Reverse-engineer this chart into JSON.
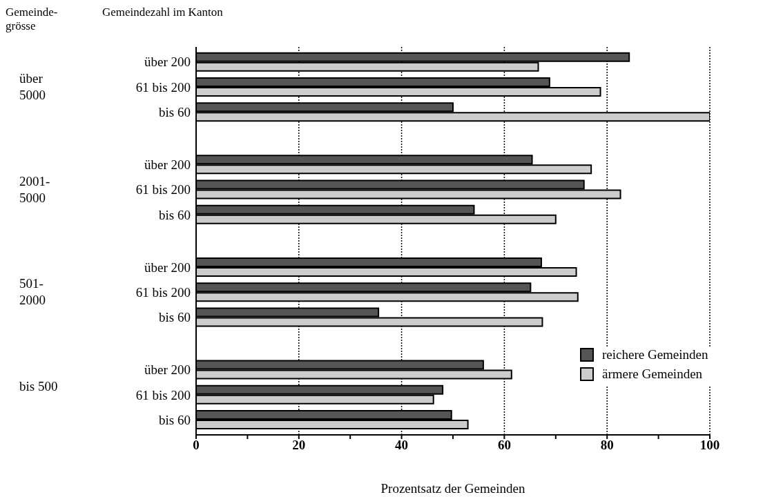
{
  "chart_data": {
    "type": "bar",
    "orientation": "horizontal",
    "ylabel": "Gemeindezahl im Kanton",
    "xlabel": "Prozentsatz der Gemeinden",
    "categories": [
      "über 200",
      "61 bis 200",
      "bis 60",
      "über 200",
      "61 bis 200",
      "bis 60",
      "über 200",
      "61 bis 200",
      "bis 60",
      "über 200",
      "61 bis 200",
      "bis 60"
    ],
    "series": [
      {
        "name": "reichere Gemeinden",
        "color": "#555555",
        "values": [
          84.3,
          68.8,
          50,
          65.4,
          75.5,
          54.1,
          67.2,
          65.1,
          35.5,
          55.9,
          48,
          49.7
        ]
      },
      {
        "name": "ärmere Gemeinden",
        "color": "#cccccc",
        "values": [
          66.6,
          78.7,
          100,
          76.9,
          82.6,
          70,
          74,
          74.3,
          67.4,
          61.4,
          46.2,
          52.9
        ]
      }
    ],
    "xlim": [
      0,
      100
    ],
    "xticks": [
      0,
      {
        "value": 10,
        "label": null
      },
      20,
      {
        "value": 30,
        "label": null
      },
      40,
      {
        "value": 50,
        "label": null
      },
      60,
      {
        "value": 70,
        "label": null
      },
      80,
      {
        "value": 90,
        "label": null
      },
      100
    ],
    "grid": "x",
    "legend": "bottom right",
    "annotations": [
      "Gemeinde-grösse",
      "über 5000",
      "2001-5000",
      "501-2000",
      "bis 500"
    ]
  }
}
